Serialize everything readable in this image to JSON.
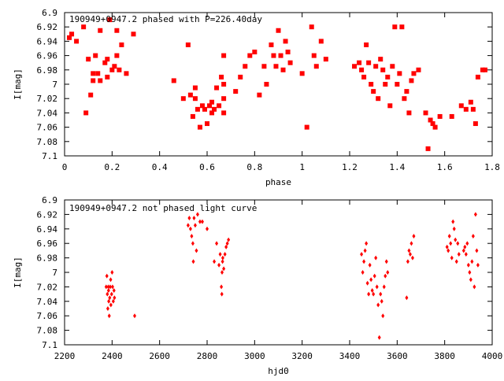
{
  "colors": {
    "series": "#ff0000",
    "axes": "#000000",
    "background": "#ffffff"
  },
  "chart_data": [
    {
      "type": "scatter",
      "title": "190949+0947.2 phased with P=226.40day",
      "xlabel": "phase",
      "ylabel": "I[mag]",
      "xlim": [
        0,
        1.8
      ],
      "ylim": [
        7.1,
        6.9
      ],
      "y_inverted": true,
      "grid": false,
      "legend": "none",
      "marker": "filled-square",
      "xticks": [
        0,
        0.2,
        0.4,
        0.6,
        0.8,
        1,
        1.2,
        1.4,
        1.6,
        1.8
      ],
      "xtick_labels": [
        "0",
        "0.2",
        "0.4",
        "0.6",
        "0.8",
        "1",
        "1.2",
        "1.4",
        "1.6",
        "1.8"
      ],
      "yticks": [
        6.9,
        6.92,
        6.94,
        6.96,
        6.98,
        7.0,
        7.02,
        7.04,
        7.06,
        7.08,
        7.1
      ],
      "ytick_labels": [
        "6.9",
        "6.92",
        "6.94",
        "6.96",
        "6.98",
        "7",
        "7.02",
        "7.04",
        "7.06",
        "7.08",
        "7.1"
      ],
      "series": [
        {
          "x": [
            0.02,
            0.03,
            0.05,
            0.08,
            0.09,
            0.1,
            0.11,
            0.12,
            0.12,
            0.13,
            0.14,
            0.15,
            0.15,
            0.17,
            0.18,
            0.18,
            0.19,
            0.2,
            0.21,
            0.22,
            0.22,
            0.23,
            0.24,
            0.26,
            0.29,
            0.46,
            0.5,
            0.52,
            0.53,
            0.54,
            0.55,
            0.55,
            0.56,
            0.57,
            0.58,
            0.59,
            0.6,
            0.61,
            0.62,
            0.62,
            0.63,
            0.64,
            0.65,
            0.66,
            0.67,
            0.67,
            0.67,
            0.67,
            0.72,
            0.74,
            0.76,
            0.78,
            0.8,
            0.82,
            0.84,
            0.85,
            0.87,
            0.88,
            0.89,
            0.9,
            0.91,
            0.92,
            0.93,
            0.94,
            0.95,
            1.0,
            1.02,
            1.04,
            1.05,
            1.06,
            1.08,
            1.1,
            1.22,
            1.24,
            1.25,
            1.26,
            1.27,
            1.28,
            1.29,
            1.3,
            1.31,
            1.32,
            1.33,
            1.34,
            1.35,
            1.36,
            1.37,
            1.38,
            1.39,
            1.4,
            1.41,
            1.42,
            1.43,
            1.44,
            1.45,
            1.46,
            1.47,
            1.49,
            1.52,
            1.53,
            1.54,
            1.55,
            1.56,
            1.58,
            1.63,
            1.67,
            1.69,
            1.71,
            1.72,
            1.73,
            1.74,
            1.76,
            1.77
          ],
          "y": [
            6.935,
            6.93,
            6.94,
            6.92,
            7.04,
            6.965,
            7.015,
            6.995,
            6.985,
            6.96,
            6.985,
            6.925,
            6.995,
            6.97,
            6.99,
            6.965,
            6.91,
            6.98,
            6.975,
            6.925,
            6.96,
            6.98,
            6.945,
            6.985,
            6.93,
            6.995,
            7.02,
            6.945,
            7.015,
            7.045,
            7.02,
            7.005,
            7.035,
            7.06,
            7.03,
            7.035,
            7.055,
            7.03,
            7.025,
            7.04,
            7.035,
            7.005,
            7.03,
            6.99,
            6.96,
            7.0,
            7.02,
            7.04,
            7.01,
            6.99,
            6.975,
            6.96,
            6.955,
            7.015,
            6.975,
            7.0,
            6.945,
            6.96,
            6.975,
            6.925,
            6.96,
            6.98,
            6.94,
            6.955,
            6.97,
            6.985,
            7.06,
            6.92,
            6.96,
            6.975,
            6.94,
            6.965,
            6.975,
            6.97,
            6.98,
            6.99,
            6.945,
            6.97,
            7.0,
            7.01,
            6.975,
            7.02,
            6.965,
            6.98,
            7.0,
            6.99,
            7.03,
            6.975,
            6.92,
            7.0,
            6.985,
            6.92,
            7.02,
            7.01,
            7.04,
            6.995,
            6.985,
            6.98,
            7.04,
            7.09,
            7.05,
            7.055,
            7.06,
            7.045,
            7.045,
            7.03,
            7.035,
            7.025,
            7.035,
            7.055,
            6.99,
            6.98,
            6.98
          ]
        }
      ]
    },
    {
      "type": "scatter",
      "title": "190949+0947.2 not phased light curve",
      "xlabel": "hjd0",
      "ylabel": "I[mag]",
      "xlim": [
        2200,
        4000
      ],
      "ylim": [
        7.1,
        6.9
      ],
      "y_inverted": true,
      "grid": false,
      "legend": "none",
      "marker": "small-diamond",
      "xticks": [
        2200,
        2400,
        2600,
        2800,
        3000,
        3200,
        3400,
        3600,
        3800,
        4000
      ],
      "xtick_labels": [
        "2200",
        "2400",
        "2600",
        "2800",
        "3000",
        "3200",
        "3400",
        "3600",
        "3800",
        "4000"
      ],
      "yticks": [
        6.9,
        6.92,
        6.94,
        6.96,
        6.98,
        7.0,
        7.02,
        7.04,
        7.06,
        7.08,
        7.1
      ],
      "ytick_labels": [
        "6.9",
        "6.92",
        "6.94",
        "6.96",
        "6.98",
        "7",
        "7.02",
        "7.04",
        "7.06",
        "7.08",
        "7.1"
      ],
      "series": [
        {
          "x": [
            2375,
            2378,
            2380,
            2382,
            2384,
            2385,
            2386,
            2388,
            2390,
            2392,
            2394,
            2395,
            2398,
            2400,
            2402,
            2405,
            2408,
            2410,
            2495,
            2720,
            2725,
            2730,
            2735,
            2740,
            2742,
            2745,
            2750,
            2755,
            2760,
            2770,
            2780,
            2800,
            2830,
            2840,
            2850,
            2855,
            2860,
            2862,
            2863,
            2865,
            2866,
            2870,
            2875,
            2880,
            2885,
            2890,
            3450,
            3455,
            3460,
            3465,
            3470,
            3475,
            3480,
            3485,
            3490,
            3495,
            3500,
            3505,
            3510,
            3515,
            3520,
            3525,
            3530,
            3535,
            3540,
            3545,
            3550,
            3555,
            3560,
            3640,
            3645,
            3650,
            3655,
            3660,
            3665,
            3670,
            3810,
            3815,
            3820,
            3825,
            3830,
            3835,
            3840,
            3845,
            3850,
            3855,
            3860,
            3880,
            3885,
            3890,
            3895,
            3900,
            3905,
            3910,
            3915,
            3920,
            3925,
            3930,
            3935,
            3940
          ],
          "y": [
            7.02,
            7.005,
            7.03,
            7.05,
            7.02,
            7.025,
            7.04,
            7.06,
            7.035,
            7.02,
            7.01,
            7.045,
            7.03,
            7.0,
            7.02,
            7.04,
            7.025,
            7.035,
            7.06,
            6.935,
            6.925,
            6.94,
            6.95,
            6.96,
            6.985,
            6.925,
            6.935,
            6.97,
            6.92,
            6.93,
            6.93,
            6.94,
            6.985,
            6.96,
            6.99,
            6.975,
            7.02,
            7.03,
            7.0,
            6.985,
            6.98,
            6.995,
            6.975,
            6.965,
            6.96,
            6.955,
            6.975,
            7.0,
            6.985,
            6.97,
            6.96,
            7.015,
            7.03,
            6.99,
            7.01,
            7.025,
            7.03,
            7.005,
            6.98,
            7.02,
            7.045,
            7.09,
            7.03,
            7.04,
            7.06,
            7.02,
            7.005,
            6.985,
            7.0,
            7.035,
            6.985,
            6.97,
            6.975,
            6.96,
            6.98,
            6.95,
            6.965,
            6.97,
            6.95,
            6.96,
            6.98,
            6.93,
            6.94,
            6.955,
            6.985,
            6.96,
            6.975,
            6.97,
            6.965,
            6.975,
            6.96,
            6.99,
            7.0,
            7.01,
            6.985,
            6.95,
            7.02,
            6.92,
            6.97,
            6.99
          ]
        }
      ]
    }
  ]
}
